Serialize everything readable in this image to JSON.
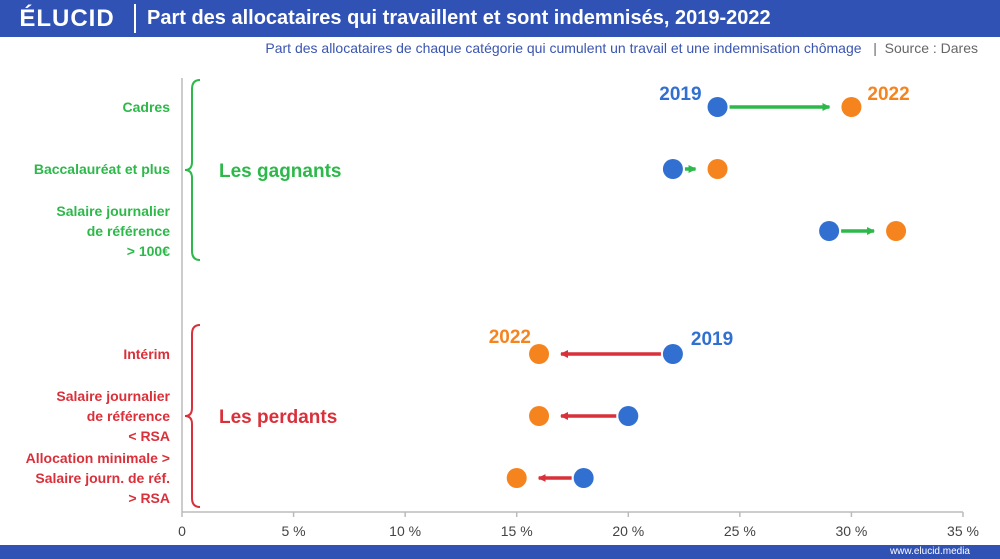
{
  "header": {
    "logo": "ÉLUCID",
    "title": "Part des allocataires qui travaillent et sont indemnisés, 2019-2022"
  },
  "subtitle": {
    "text": "Part des allocataires de chaque catégorie qui cumulent un travail et une indemnisation chômage",
    "separator": "|",
    "source": "Source : Dares"
  },
  "footer": {
    "site": "www.elucid.media"
  },
  "groups": [
    {
      "label": "Les gagnants",
      "color": "#2db84a"
    },
    {
      "label": "Les perdants",
      "color": "#d9303a"
    }
  ],
  "year_labels": {
    "from": "2019",
    "to": "2022"
  },
  "colors": {
    "y2019": "#3170d0",
    "y2022": "#f5841f",
    "gain": "#2db84a",
    "loss": "#d9303a",
    "axis": "#bbbbbb"
  },
  "chart_data": {
    "type": "dumbbell",
    "title": "Part des allocataires qui travaillent et sont indemnisés, 2019-2022",
    "series": [
      {
        "name": "2019"
      },
      {
        "name": "2022"
      }
    ],
    "xlim": [
      0,
      35
    ],
    "xticks": [
      {
        "value": 0,
        "label": "0"
      },
      {
        "value": 5,
        "label": "5 %"
      },
      {
        "value": 10,
        "label": "10 %"
      },
      {
        "value": 15,
        "label": "15 %"
      },
      {
        "value": 20,
        "label": "20 %"
      },
      {
        "value": 25,
        "label": "25 %"
      },
      {
        "value": 30,
        "label": "30 %"
      },
      {
        "value": 35,
        "label": "35 %"
      }
    ],
    "categories": [
      {
        "lines": [
          "Cadres"
        ],
        "group": 0,
        "v2019": 24,
        "v2022": 30
      },
      {
        "lines": [
          "Baccalauréat et plus"
        ],
        "group": 0,
        "v2019": 22,
        "v2022": 24
      },
      {
        "lines": [
          "Salaire journalier",
          "de référence",
          "> 100€"
        ],
        "group": 0,
        "v2019": 29,
        "v2022": 32
      },
      {
        "lines": [
          "Intérim"
        ],
        "group": 1,
        "v2019": 22,
        "v2022": 16
      },
      {
        "lines": [
          "Salaire journalier",
          "de référence",
          "< RSA"
        ],
        "group": 1,
        "v2019": 20,
        "v2022": 16
      },
      {
        "lines": [
          "Allocation minimale >",
          "Salaire journ. de réf.",
          "> RSA"
        ],
        "group": 1,
        "v2019": 18,
        "v2022": 15
      }
    ]
  }
}
